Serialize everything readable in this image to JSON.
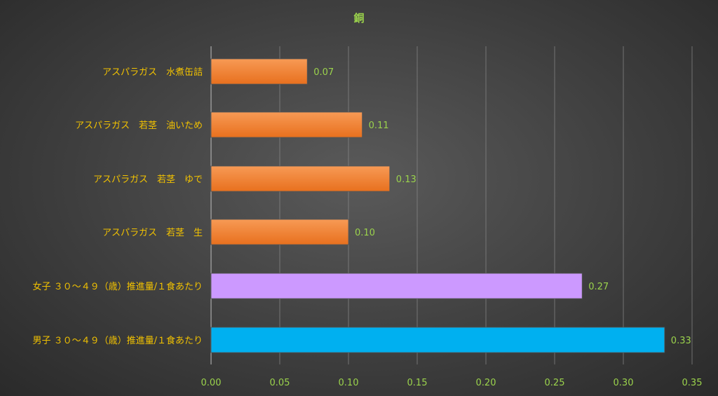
{
  "colors": {
    "title": "#9bd34c",
    "category_label": "#f2c200",
    "value_label": "#9bd34c",
    "tick_label": "#9bd34c",
    "grid": "#8a8a8a"
  },
  "chart_data": {
    "type": "bar",
    "orientation": "horizontal",
    "title": "銅",
    "xlim": [
      0,
      0.35
    ],
    "xticks": [
      "0.00",
      "0.05",
      "0.10",
      "0.15",
      "0.20",
      "0.25",
      "0.30",
      "0.35"
    ],
    "grid": true,
    "categories": [
      "アスパラガス　水煮缶詰",
      "アスパラガス　若茎　油いため",
      "アスパラガス　若茎　ゆで",
      "アスパラガス　若茎　生",
      "女子 ３０～４９（歳）推進量/１食あたり",
      "男子 ３０～４９（歳）推進量/１食あたり"
    ],
    "values": [
      0.07,
      0.11,
      0.13,
      0.1,
      0.27,
      0.33
    ],
    "value_labels": [
      "0.07",
      "0.11",
      "0.13",
      "0.10",
      "0.27",
      "0.33"
    ],
    "bar_colors": [
      "#f07a28",
      "#f07a28",
      "#f07a28",
      "#f07a28",
      "#cc99ff",
      "#00b0f0"
    ]
  }
}
